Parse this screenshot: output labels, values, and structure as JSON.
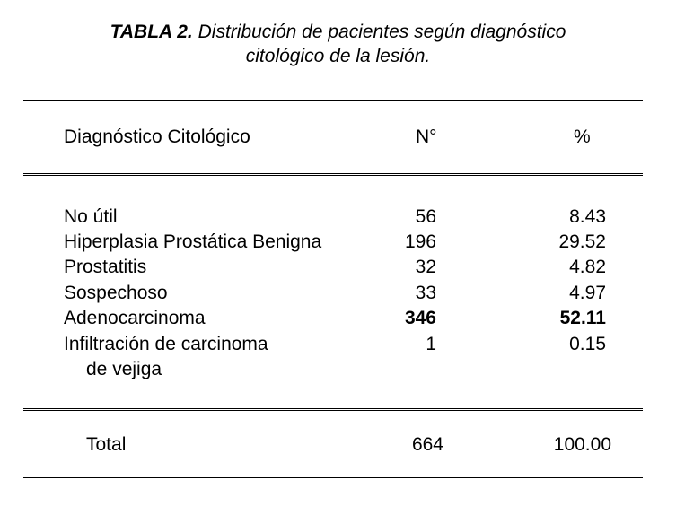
{
  "table": {
    "title_label": "TABLA 2.",
    "title_line1": " Distribución de pacientes según diagnóstico",
    "title_line2": "citológico de la lesión.",
    "headers": {
      "diagnosis": "Diagnóstico Citológico",
      "count": "N°",
      "percent": "%"
    },
    "rows": [
      {
        "diagnosis": "No útil",
        "count": "56",
        "percent": "8.43"
      },
      {
        "diagnosis": "Hiperplasia Prostática Benigna",
        "count": "196",
        "percent": "29.52"
      },
      {
        "diagnosis": "Prostatitis",
        "count": "32",
        "percent": "4.82"
      },
      {
        "diagnosis": "Sospechoso",
        "count": "33",
        "percent": "4.97"
      },
      {
        "diagnosis": "Adenocarcinoma",
        "count": "346",
        "percent": "52.11"
      },
      {
        "diagnosis": "Infiltración de carcinoma",
        "diagnosis_cont": "de vejiga",
        "count": "1",
        "percent": "0.15"
      }
    ],
    "total": {
      "label": "Total",
      "count": "664",
      "percent": "100.00"
    }
  }
}
